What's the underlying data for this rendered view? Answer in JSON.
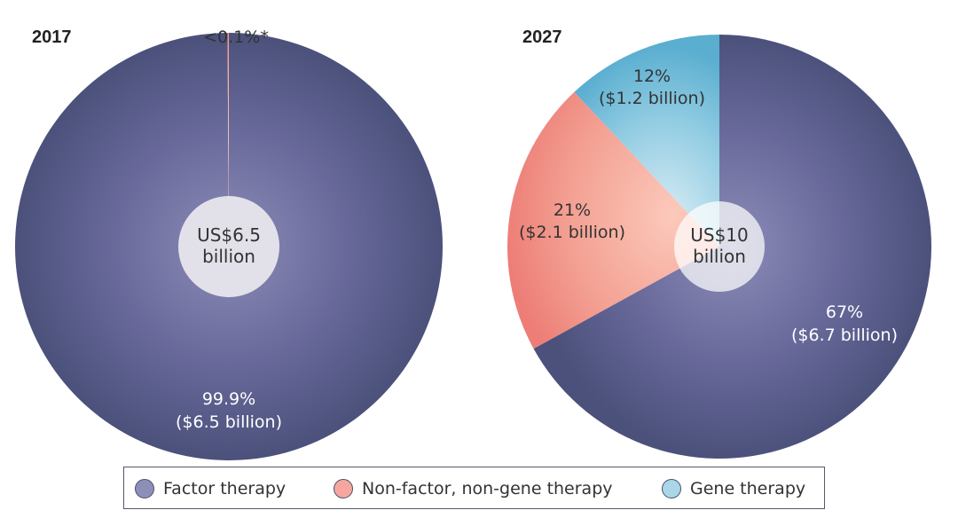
{
  "chart_data": [
    {
      "type": "pie",
      "title": "2017",
      "center_label": [
        "US$6.5",
        "billion"
      ],
      "slices": [
        {
          "name": "Factor therapy",
          "value": 99.9,
          "label": [
            "99.9%",
            "($6.5 billion)"
          ],
          "color": "#4b527e"
        },
        {
          "name": "Non-factor, non-gene therapy",
          "value": 0.1,
          "label": [
            "<0.1%*"
          ],
          "color": "#f08a80"
        }
      ]
    },
    {
      "type": "pie",
      "title": "2027",
      "center_label": [
        "US$10",
        "billion"
      ],
      "slices": [
        {
          "name": "Factor therapy",
          "value": 67,
          "label": [
            "67%",
            "($6.7 billion)"
          ],
          "color": "#4b527e"
        },
        {
          "name": "Non-factor, non-gene therapy",
          "value": 21,
          "label": [
            "21%",
            "($2.1 billion)"
          ],
          "color": "#f08a80"
        },
        {
          "name": "Gene therapy",
          "value": 12,
          "label": [
            "12%",
            "($1.2 billion)"
          ],
          "color": "#5fb3d3"
        }
      ]
    }
  ],
  "legend": [
    {
      "label": "Factor therapy",
      "color": "#8d8fb8"
    },
    {
      "label": "Non-factor, non-gene therapy",
      "color": "#f5a79f"
    },
    {
      "label": "Gene therapy",
      "color": "#a9d7e8"
    }
  ]
}
